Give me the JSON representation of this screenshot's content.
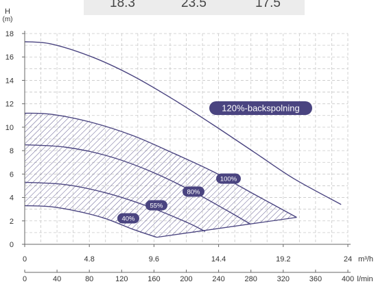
{
  "header_strip": {
    "values": [
      "18.3",
      "23.5",
      "17.5"
    ]
  },
  "chart_data": {
    "type": "line",
    "y_axis": {
      "label": "H",
      "unit": "(m)",
      "min": 0,
      "max": 18,
      "ticks": [
        0,
        2,
        4,
        6,
        8,
        10,
        12,
        14,
        16,
        18
      ]
    },
    "x_axis_primary": {
      "unit": "m³/h",
      "min": 0,
      "max": 24,
      "ticks": [
        "0",
        "4.8",
        "9.6",
        "14.4",
        "19.2",
        "24"
      ]
    },
    "x_axis_secondary": {
      "unit": "l/min",
      "min": 0,
      "max": 400,
      "ticks": [
        "0",
        "40",
        "80",
        "120",
        "160",
        "200",
        "240",
        "280",
        "320",
        "360",
        "400"
      ]
    },
    "grid": true,
    "series": [
      {
        "name": "120%-backspolning",
        "x": [
          0,
          2,
          5,
          8,
          11,
          14,
          17,
          20,
          23.5
        ],
        "y": [
          17.3,
          17.1,
          16.0,
          14.4,
          12.4,
          10.2,
          7.9,
          5.6,
          3.4
        ]
      },
      {
        "name": "100%",
        "x": [
          0,
          2,
          5,
          8,
          11,
          14,
          17,
          20.2
        ],
        "y": [
          11.2,
          11.1,
          10.4,
          9.3,
          7.8,
          6.2,
          4.3,
          2.3
        ]
      },
      {
        "name": "80%",
        "x": [
          0,
          3,
          6,
          9,
          12,
          15,
          16.8
        ],
        "y": [
          8.5,
          8.3,
          7.6,
          6.4,
          4.8,
          2.9,
          1.7
        ]
      },
      {
        "name": "55%",
        "x": [
          0,
          3,
          6,
          9,
          12,
          13.4
        ],
        "y": [
          5.3,
          5.1,
          4.4,
          3.3,
          1.9,
          1.1
        ]
      },
      {
        "name": "40%",
        "x": [
          0,
          2,
          4,
          6,
          8,
          9.8
        ],
        "y": [
          3.3,
          3.2,
          2.8,
          2.2,
          1.3,
          0.6
        ]
      }
    ],
    "operating_area": {
      "pattern": "hatched",
      "color": "#4a4480",
      "bottom_edge_x": [
        9.8,
        20.2
      ],
      "bottom_edge_y": [
        0.6,
        2.3
      ]
    }
  }
}
